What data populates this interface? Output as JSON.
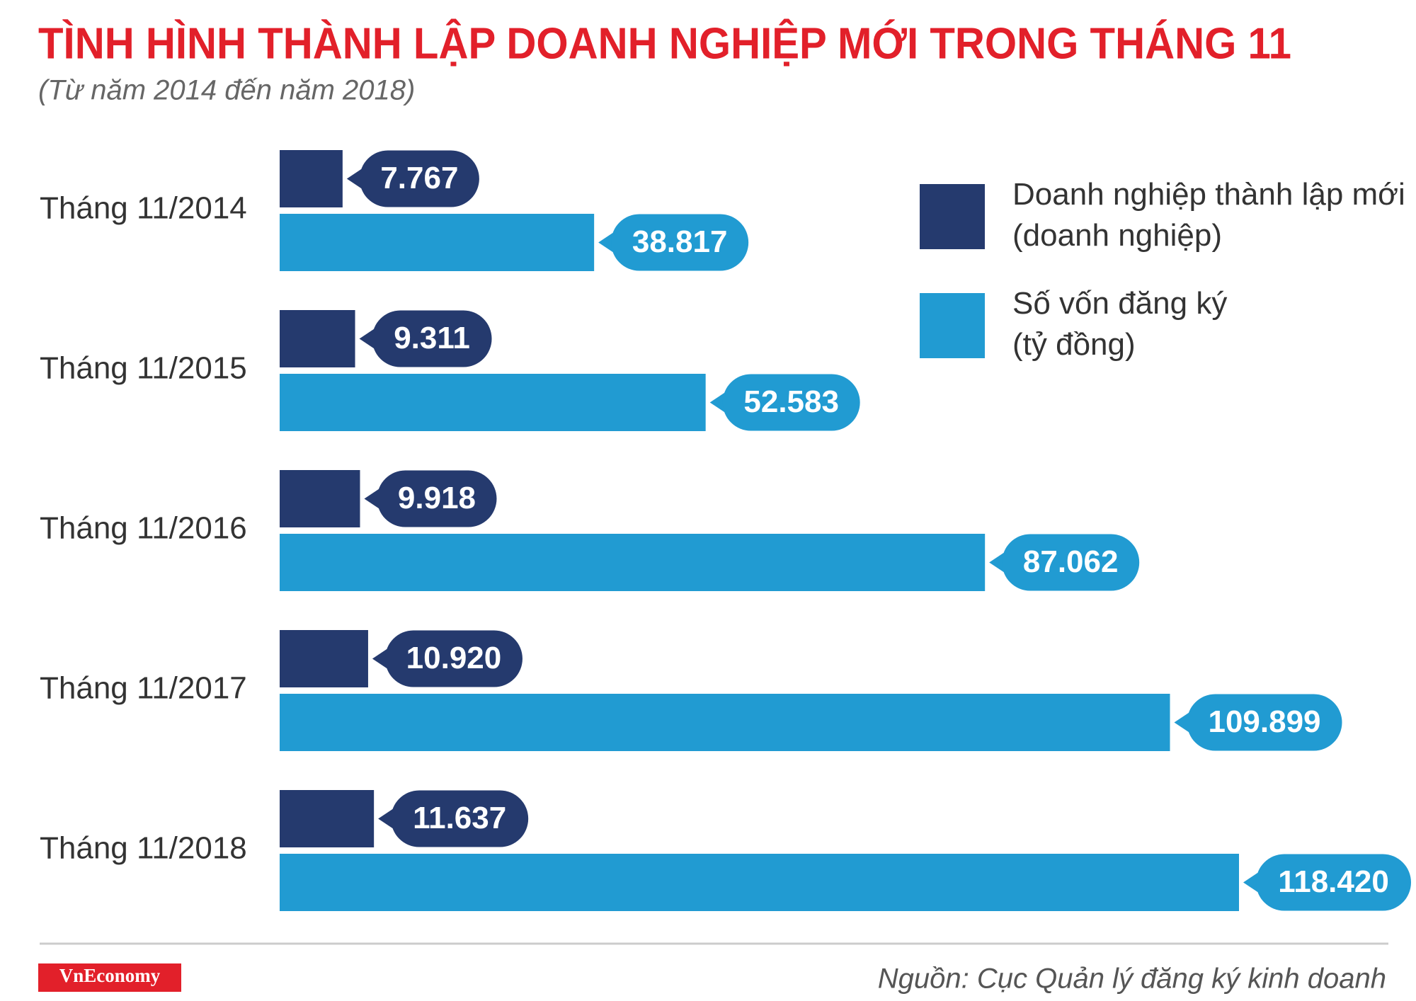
{
  "chart_data": {
    "type": "bar",
    "orientation": "horizontal",
    "title": "TÌNH HÌNH THÀNH LẬP DOANH NGHIỆP MỚI TRONG THÁNG 11",
    "subtitle": "(Từ năm 2014 đến năm 2018)",
    "categories": [
      "Tháng 11/2014",
      "Tháng 11/2015",
      "Tháng 11/2016",
      "Tháng 11/2017",
      "Tháng 11/2018"
    ],
    "series": [
      {
        "name": "Doanh nghiệp thành lập mới\n(doanh nghiệp)",
        "color": "#253a6e",
        "values": [
          7767,
          9311,
          9918,
          10920,
          11637
        ],
        "value_labels": [
          "7.767",
          "9.311",
          "9.918",
          "10.920",
          "11.637"
        ]
      },
      {
        "name": "Số vốn đăng ký\n(tỷ đồng)",
        "color": "#219bd2",
        "values": [
          38817,
          52583,
          87062,
          109899,
          118420
        ],
        "value_labels": [
          "38.817",
          "52.583",
          "87.062",
          "109.899",
          "118.420"
        ]
      }
    ],
    "legend": "upper right",
    "source": "Nguồn: Cục Quản lý đăng ký kinh doanh",
    "logo": "VnEconomy"
  }
}
